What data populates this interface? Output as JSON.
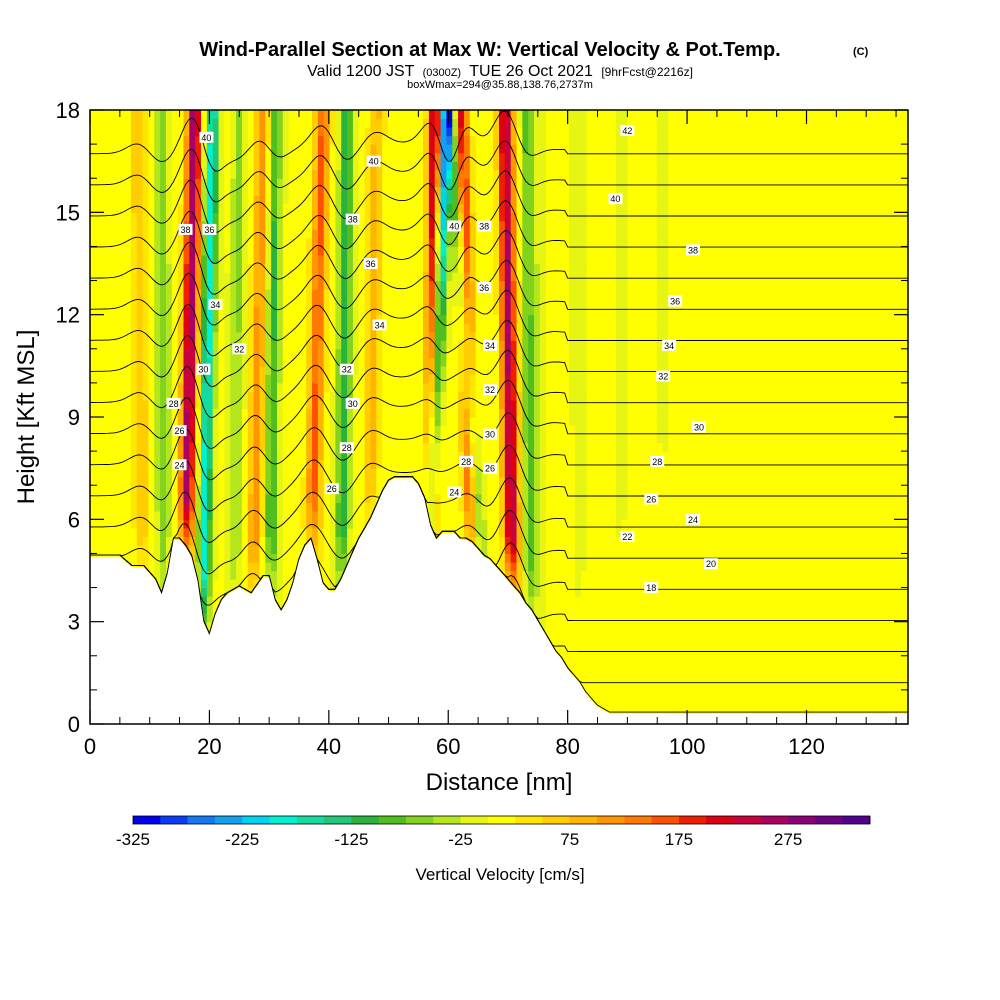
{
  "chart_data": {
    "type": "heatmap",
    "title": "Wind-Parallel Section at Max W: Vertical Velocity & Pot.Temp.",
    "title_mark": "(C)",
    "subtitle": {
      "prefix": "Valid 1200 JST",
      "utc": "(0300Z)",
      "date": "TUE 26 Oct 2021",
      "forecast": "[9hrFcst@2216z]"
    },
    "subtitle2": "boxWmax=294@35.88,138.76,2737m",
    "xlabel": "Distance [nm]",
    "ylabel": "Height [Kft MSL]",
    "xlim": [
      0,
      137
    ],
    "ylim": [
      0,
      18
    ],
    "x_ticks": [
      "0",
      "20",
      "40",
      "60",
      "80",
      "100",
      "120"
    ],
    "y_ticks": [
      "0",
      "3",
      "6",
      "9",
      "12",
      "15",
      "18"
    ],
    "colorbar": {
      "label": "Vertical Velocity [cm/s]",
      "tick_labels": [
        "-325",
        "-225",
        "-125",
        "-25",
        "75",
        "175",
        "275"
      ],
      "colors": [
        "#0000f0",
        "#0a3cf5",
        "#1478f5",
        "#14a0f0",
        "#00d2f0",
        "#00f0d2",
        "#14dca0",
        "#1ec878",
        "#28b43c",
        "#50be1e",
        "#82d21e",
        "#b4e61e",
        "#e6f514",
        "#ffff00",
        "#ffe600",
        "#ffcd00",
        "#ffb400",
        "#ff9600",
        "#ff7800",
        "#ff5000",
        "#f01e00",
        "#dc0014",
        "#c8003c",
        "#aa0064",
        "#8c0078",
        "#6e0082",
        "#50008c"
      ]
    },
    "terrain": {
      "x": [
        0,
        5,
        7,
        9,
        10,
        11,
        12,
        13,
        14,
        15,
        16,
        17,
        18,
        19,
        20,
        21,
        22,
        23,
        25,
        27,
        29,
        30,
        31,
        32,
        33,
        34,
        35,
        36,
        37,
        38,
        39,
        40,
        41,
        42,
        43,
        44,
        45,
        46,
        47,
        48,
        49,
        50,
        51,
        52,
        53,
        54,
        55,
        56,
        57,
        58,
        59,
        60,
        61,
        62,
        63,
        64,
        65,
        66,
        67,
        68,
        69,
        70,
        71,
        72,
        73,
        74,
        75,
        76,
        77,
        78,
        79,
        80,
        81,
        82,
        83,
        84,
        85,
        86,
        87,
        88,
        137
      ],
      "y": [
        4.9,
        4.9,
        4.6,
        4.6,
        4.4,
        4.2,
        3.8,
        4.4,
        5.4,
        5.4,
        5.2,
        4.9,
        4.2,
        3.0,
        2.6,
        3.2,
        3.6,
        3.8,
        4.0,
        3.8,
        4.3,
        4.3,
        3.6,
        3.3,
        3.6,
        4.1,
        4.8,
        5.2,
        5.4,
        4.8,
        4.1,
        3.9,
        3.9,
        4.2,
        4.6,
        5.0,
        5.4,
        5.7,
        6.0,
        6.4,
        6.8,
        7.1,
        7.2,
        7.2,
        7.2,
        7.2,
        7.0,
        6.6,
        5.8,
        5.4,
        5.6,
        5.6,
        5.6,
        5.4,
        5.4,
        5.3,
        5.1,
        4.9,
        4.8,
        4.6,
        4.4,
        4.2,
        4.0,
        3.8,
        3.5,
        3.3,
        3.0,
        2.7,
        2.4,
        2.1,
        1.9,
        1.6,
        1.4,
        1.2,
        0.9,
        0.7,
        0.5,
        0.4,
        0.3,
        0.3,
        0.3
      ]
    },
    "updrafts": [
      {
        "x_base": 15.5,
        "x_top": 17.5,
        "vmax": 270
      },
      {
        "x_base": 27.0,
        "x_top": 29.0,
        "vmax": 110
      },
      {
        "x_base": 36.5,
        "x_top": 39.0,
        "vmax": 150
      },
      {
        "x_base": 57.0,
        "x_top": 58.0,
        "vmax": 294
      },
      {
        "x_base": 65.0,
        "x_top": 62.0,
        "vmax": 230
      },
      {
        "x_base": 71.0,
        "x_top": 69.5,
        "vmax": 250
      },
      {
        "x_base": 9.0,
        "x_top": 8.0,
        "vmax": 70
      },
      {
        "x_base": 46.5,
        "x_top": 48.0,
        "vmax": 80
      }
    ],
    "downdrafts": [
      {
        "x_base": 18.5,
        "x_top": 20.5,
        "vmin": -200
      },
      {
        "x_base": 30.0,
        "x_top": 31.0,
        "vmin": -110
      },
      {
        "x_base": 42.0,
        "x_top": 43.0,
        "vmin": -130
      },
      {
        "x_base": 56.0,
        "x_top": 59.5,
        "vmin": -325
      },
      {
        "x_base": 67.0,
        "x_top": 60.5,
        "vmin": -180
      },
      {
        "x_base": 74.0,
        "x_top": 73.0,
        "vmin": -90
      },
      {
        "x_base": 12.5,
        "x_top": 12.0,
        "vmin": -80
      },
      {
        "x_base": 24.0,
        "x_top": 25.0,
        "vmin": -60
      }
    ],
    "isentropes": {
      "levels": [
        8,
        10,
        12,
        14,
        16,
        18,
        20,
        22,
        24,
        26,
        28,
        30,
        32,
        34,
        36,
        38,
        40,
        42,
        44
      ],
      "labels": [
        {
          "text": "40",
          "x": 19.5,
          "y": 17.2
        },
        {
          "text": "40",
          "x": 47.5,
          "y": 16.5
        },
        {
          "text": "40",
          "x": 61.0,
          "y": 14.6
        },
        {
          "text": "40",
          "x": 88.0,
          "y": 15.4
        },
        {
          "text": "42",
          "x": 90.0,
          "y": 17.4
        },
        {
          "text": "38",
          "x": 16.0,
          "y": 14.5
        },
        {
          "text": "36",
          "x": 20.0,
          "y": 14.5
        },
        {
          "text": "38",
          "x": 44.0,
          "y": 14.8
        },
        {
          "text": "38",
          "x": 66.0,
          "y": 14.6
        },
        {
          "text": "38",
          "x": 101.0,
          "y": 13.9
        },
        {
          "text": "36",
          "x": 47.0,
          "y": 13.5
        },
        {
          "text": "36",
          "x": 66.0,
          "y": 12.8
        },
        {
          "text": "36",
          "x": 98.0,
          "y": 12.4
        },
        {
          "text": "34",
          "x": 21.0,
          "y": 12.3
        },
        {
          "text": "34",
          "x": 48.5,
          "y": 11.7
        },
        {
          "text": "34",
          "x": 67.0,
          "y": 11.1
        },
        {
          "text": "34",
          "x": 97.0,
          "y": 11.1
        },
        {
          "text": "32",
          "x": 25.0,
          "y": 11.0
        },
        {
          "text": "32",
          "x": 43.0,
          "y": 10.4
        },
        {
          "text": "32",
          "x": 67.0,
          "y": 9.8
        },
        {
          "text": "32",
          "x": 96.0,
          "y": 10.2
        },
        {
          "text": "30",
          "x": 19.0,
          "y": 10.4
        },
        {
          "text": "30",
          "x": 44.0,
          "y": 9.4
        },
        {
          "text": "30",
          "x": 67.0,
          "y": 8.5
        },
        {
          "text": "30",
          "x": 102.0,
          "y": 8.7
        },
        {
          "text": "28",
          "x": 14.0,
          "y": 9.4
        },
        {
          "text": "28",
          "x": 43.0,
          "y": 8.1
        },
        {
          "text": "28",
          "x": 63.0,
          "y": 7.7
        },
        {
          "text": "28",
          "x": 95.0,
          "y": 7.7
        },
        {
          "text": "26",
          "x": 15.0,
          "y": 8.6
        },
        {
          "text": "26",
          "x": 40.5,
          "y": 6.9
        },
        {
          "text": "26",
          "x": 67.0,
          "y": 7.5
        },
        {
          "text": "26",
          "x": 94.0,
          "y": 6.6
        },
        {
          "text": "24",
          "x": 15.0,
          "y": 7.6
        },
        {
          "text": "24",
          "x": 61.0,
          "y": 6.8
        },
        {
          "text": "24",
          "x": 101.0,
          "y": 6.0
        },
        {
          "text": "22",
          "x": 90.0,
          "y": 5.5
        },
        {
          "text": "20",
          "x": 104.0,
          "y": 4.7
        },
        {
          "text": "18",
          "x": 94.0,
          "y": 4.0
        }
      ]
    }
  }
}
